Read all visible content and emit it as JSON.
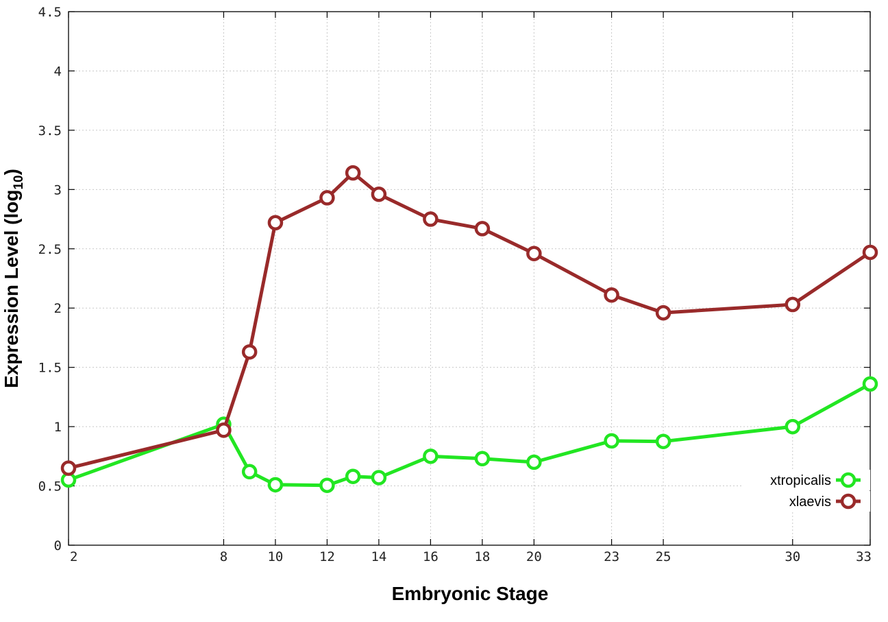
{
  "chart_data": {
    "type": "line",
    "title": "",
    "xlabel": "Embryonic Stage",
    "ylabel_main": "Expression Level (log",
    "ylabel_sub": "10",
    "ylabel_close": ")",
    "xlim": [
      2,
      33
    ],
    "ylim": [
      0,
      4.5
    ],
    "x_ticks": [
      2,
      8,
      10,
      12,
      14,
      16,
      18,
      20,
      23,
      25,
      30,
      33
    ],
    "x_tick_labels": [
      "2",
      "8",
      "10",
      "12",
      "14",
      "16",
      "18",
      "20",
      "23",
      "25",
      "30",
      "33"
    ],
    "y_ticks": [
      0,
      0.5,
      1,
      1.5,
      2,
      2.5,
      3,
      3.5,
      4,
      4.5
    ],
    "y_tick_labels": [
      "0",
      "0.5",
      "1",
      "1.5",
      "2",
      "2.5",
      "3",
      "3.5",
      "4",
      "4.5"
    ],
    "grid": true,
    "legend_position": "bottom-right",
    "x": [
      2,
      8,
      9,
      10,
      12,
      13,
      14,
      16,
      18,
      20,
      23,
      25,
      30,
      33
    ],
    "series": [
      {
        "name": "xtropicalis",
        "color": "#22e622",
        "values": [
          0.55,
          1.02,
          0.62,
          0.51,
          0.505,
          0.58,
          0.57,
          0.75,
          0.73,
          0.7,
          0.88,
          0.875,
          1.0,
          1.36
        ]
      },
      {
        "name": "xlaevis",
        "color": "#992a2a",
        "values": [
          0.65,
          0.97,
          1.63,
          2.72,
          2.93,
          3.14,
          2.96,
          2.75,
          2.67,
          2.46,
          2.11,
          1.96,
          2.03,
          2.47
        ]
      }
    ]
  }
}
